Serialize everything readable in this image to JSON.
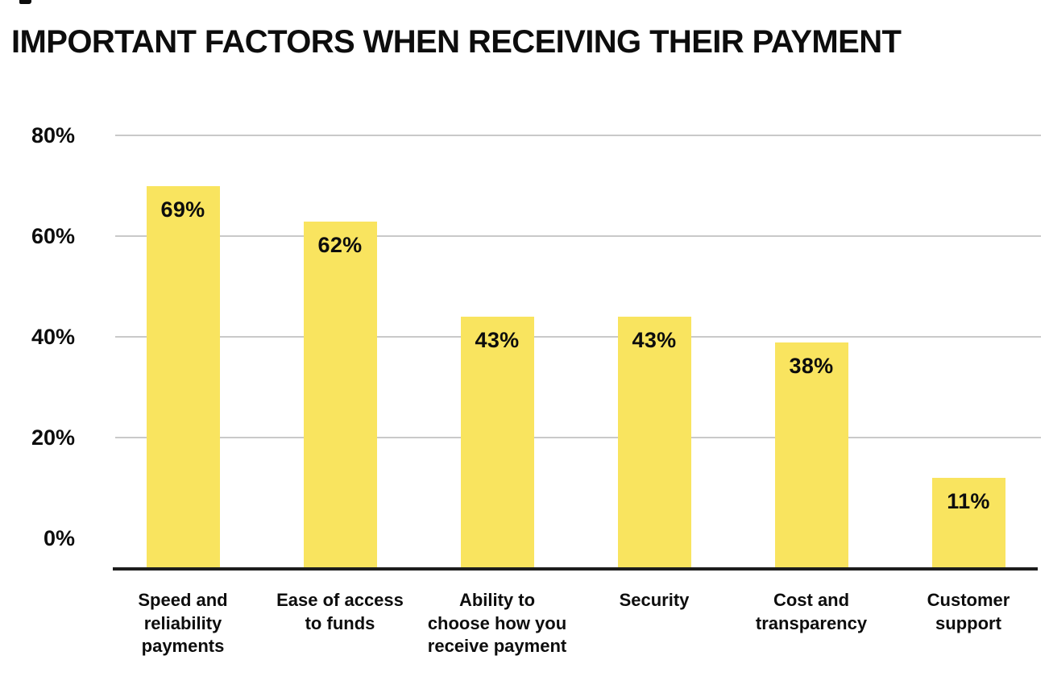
{
  "title": "IMPORTANT FACTORS WHEN RECEIVING THEIR PAYMENT",
  "colors": {
    "background": "#FFFFFF",
    "bar_fill": "#F9E45F",
    "gridline": "#C9C9C9",
    "axis_line": "#1D1D1D",
    "text": "#0D0D0D"
  },
  "chart_data": {
    "type": "bar",
    "title": "IMPORTANT FACTORS WHEN RECEIVING THEIR PAYMENT",
    "categories": [
      "Speed and reliability payments",
      "Ease of access to funds",
      "Ability to choose how you receive payment",
      "Security",
      "Cost and transparency",
      "Customer support"
    ],
    "values": [
      69,
      62,
      43,
      43,
      38,
      11
    ],
    "value_labels": [
      "69%",
      "62%",
      "43%",
      "43%",
      "38%",
      "11%"
    ],
    "xlabel": "",
    "ylabel": "",
    "ylim": [
      0,
      80
    ],
    "yticks": [
      {
        "label": "80%",
        "value": 80,
        "gridline": true
      },
      {
        "label": "60%",
        "value": 60,
        "gridline": true
      },
      {
        "label": "40%",
        "value": 40,
        "gridline": true
      },
      {
        "label": "20%",
        "value": 20,
        "gridline": true
      },
      {
        "label": "0%",
        "value": 0,
        "gridline": false
      }
    ],
    "grid": "horizontal-only",
    "legend": "none",
    "value_label_position": "inside-top",
    "bar_color": "#F9E45F"
  }
}
